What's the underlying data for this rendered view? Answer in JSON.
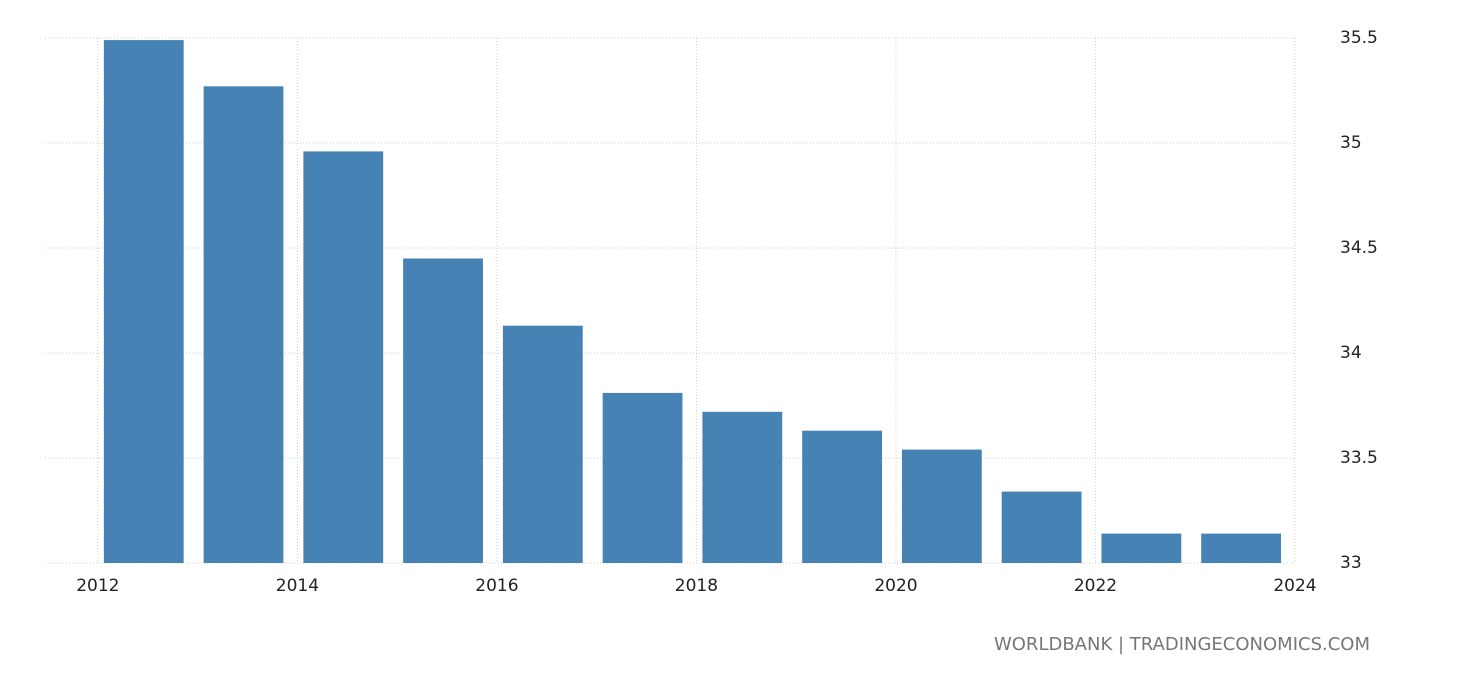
{
  "chart_data": {
    "type": "bar",
    "source": "WORLDBANK | TRADINGECONOMICS.COM",
    "x": [
      2012,
      2013,
      2014,
      2015,
      2016,
      2017,
      2018,
      2019,
      2020,
      2021,
      2022,
      2023
    ],
    "values": [
      35.49,
      35.27,
      34.96,
      34.45,
      34.13,
      33.81,
      33.72,
      33.63,
      33.54,
      33.34,
      33.14,
      33.14
    ],
    "color": "#4682b4",
    "xlim": [
      2011.47,
      2024
    ],
    "xticks": [
      2012,
      2014,
      2016,
      2018,
      2020,
      2022,
      2024
    ],
    "ylim": [
      33,
      35.5
    ],
    "yticks": [
      33,
      33.5,
      34,
      34.5,
      35,
      35.5
    ],
    "grid": true
  }
}
